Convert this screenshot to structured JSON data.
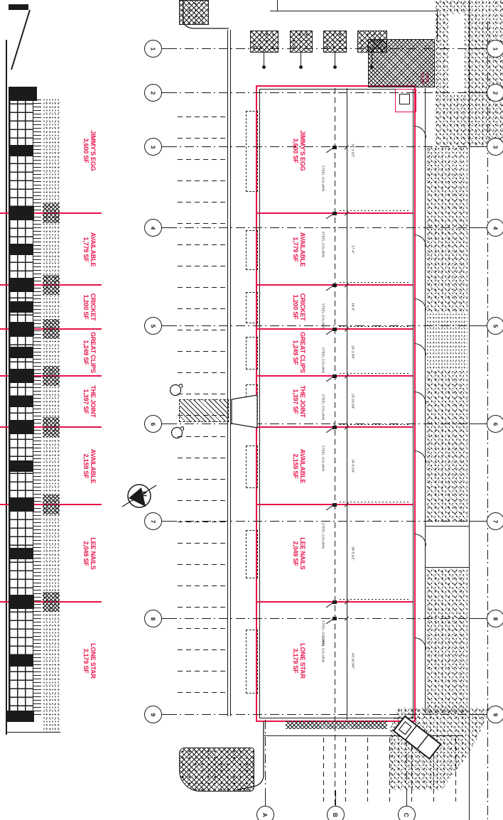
{
  "drawing": {
    "type": "shopping-center-leasing-site-plan-with-elevation",
    "colors": {
      "accent_red": "#e8134a",
      "ink": "#1b1b1b"
    }
  },
  "tenants": [
    {
      "name": "JIMMY'S EGG",
      "size": "3,600 SF",
      "dim": "34'-1 1/2\""
    },
    {
      "name": "AVAILABLE",
      "size": "1,779 SF",
      "dim": "17'-4\""
    },
    {
      "name": "CRICKET",
      "size": "1,200 SF",
      "dim": "18'-0\""
    },
    {
      "name": "GREAT CLIPS",
      "size": "1,249 SF",
      "dim": "19'-1 3/4\""
    },
    {
      "name": "THE JOINT",
      "size": "1,397 SF",
      "dim": "23'-10 1/4\""
    },
    {
      "name": "AVAILABLE",
      "size": "2,159 SF",
      "dim": "24'-6 1/4\""
    },
    {
      "name": "LEE NAILS",
      "size": "2,049 SF",
      "dim": "30'-5 1/2\""
    },
    {
      "name": "LONE STAR",
      "size": "3,179 SF",
      "dim": "43'-10 3/4\""
    }
  ],
  "fire_room": {
    "name": "FIRE",
    "size": "63 SF"
  },
  "annotations": {
    "steel_column": "STEEL COLUMN"
  },
  "grid": {
    "numbers": [
      "1",
      "2",
      "3",
      "4",
      "5",
      "6",
      "7",
      "8",
      "9"
    ],
    "letters": [
      "A",
      "B",
      "C"
    ]
  },
  "north_arrow": {
    "label": "N"
  }
}
